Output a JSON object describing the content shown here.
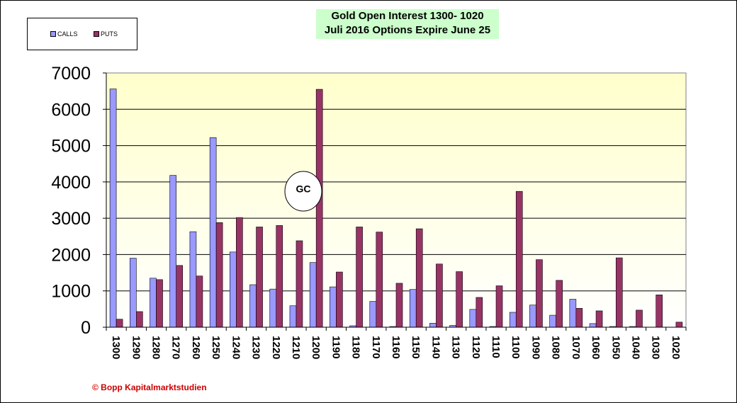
{
  "chart_data": {
    "type": "bar",
    "title": "Gold  Open Interest 1300- 1020",
    "subtitle": "Juli 2016 Options Expire June 25",
    "categories": [
      "1300",
      "1290",
      "1280",
      "1270",
      "1260",
      "1250",
      "1240",
      "1230",
      "1220",
      "1210",
      "1200",
      "1190",
      "1180",
      "1170",
      "1160",
      "1150",
      "1140",
      "1130",
      "1120",
      "1110",
      "1100",
      "1090",
      "1080",
      "1070",
      "1060",
      "1050",
      "1040",
      "1030",
      "1020"
    ],
    "series": [
      {
        "name": "CALLS",
        "color": "#9999ff",
        "values": [
          6560,
          1900,
          1350,
          4180,
          2630,
          5220,
          2070,
          1170,
          1050,
          590,
          1780,
          1110,
          40,
          710,
          20,
          1040,
          110,
          50,
          490,
          20,
          410,
          610,
          330,
          770,
          100,
          20,
          20,
          0,
          0
        ]
      },
      {
        "name": "PUTS",
        "color": "#993366",
        "values": [
          220,
          430,
          1310,
          1700,
          1410,
          2880,
          3020,
          2760,
          2800,
          2380,
          6550,
          1520,
          2760,
          2620,
          1210,
          2710,
          1740,
          1530,
          820,
          1140,
          3740,
          1860,
          1290,
          520,
          450,
          1910,
          470,
          890,
          140
        ]
      }
    ],
    "ylim": [
      0,
      7000
    ],
    "yticks": [
      0,
      1000,
      2000,
      3000,
      4000,
      5000,
      6000,
      7000
    ],
    "xlabel": "",
    "ylabel": "",
    "grid": true,
    "legend_position": "top-left",
    "plot_background": "gradient pale yellow",
    "annotation": "GC"
  },
  "legend": {
    "calls": "CALLS",
    "puts": "PUTS"
  },
  "footer": {
    "copyright": "© Bopp Kapitalmarktstudien"
  }
}
